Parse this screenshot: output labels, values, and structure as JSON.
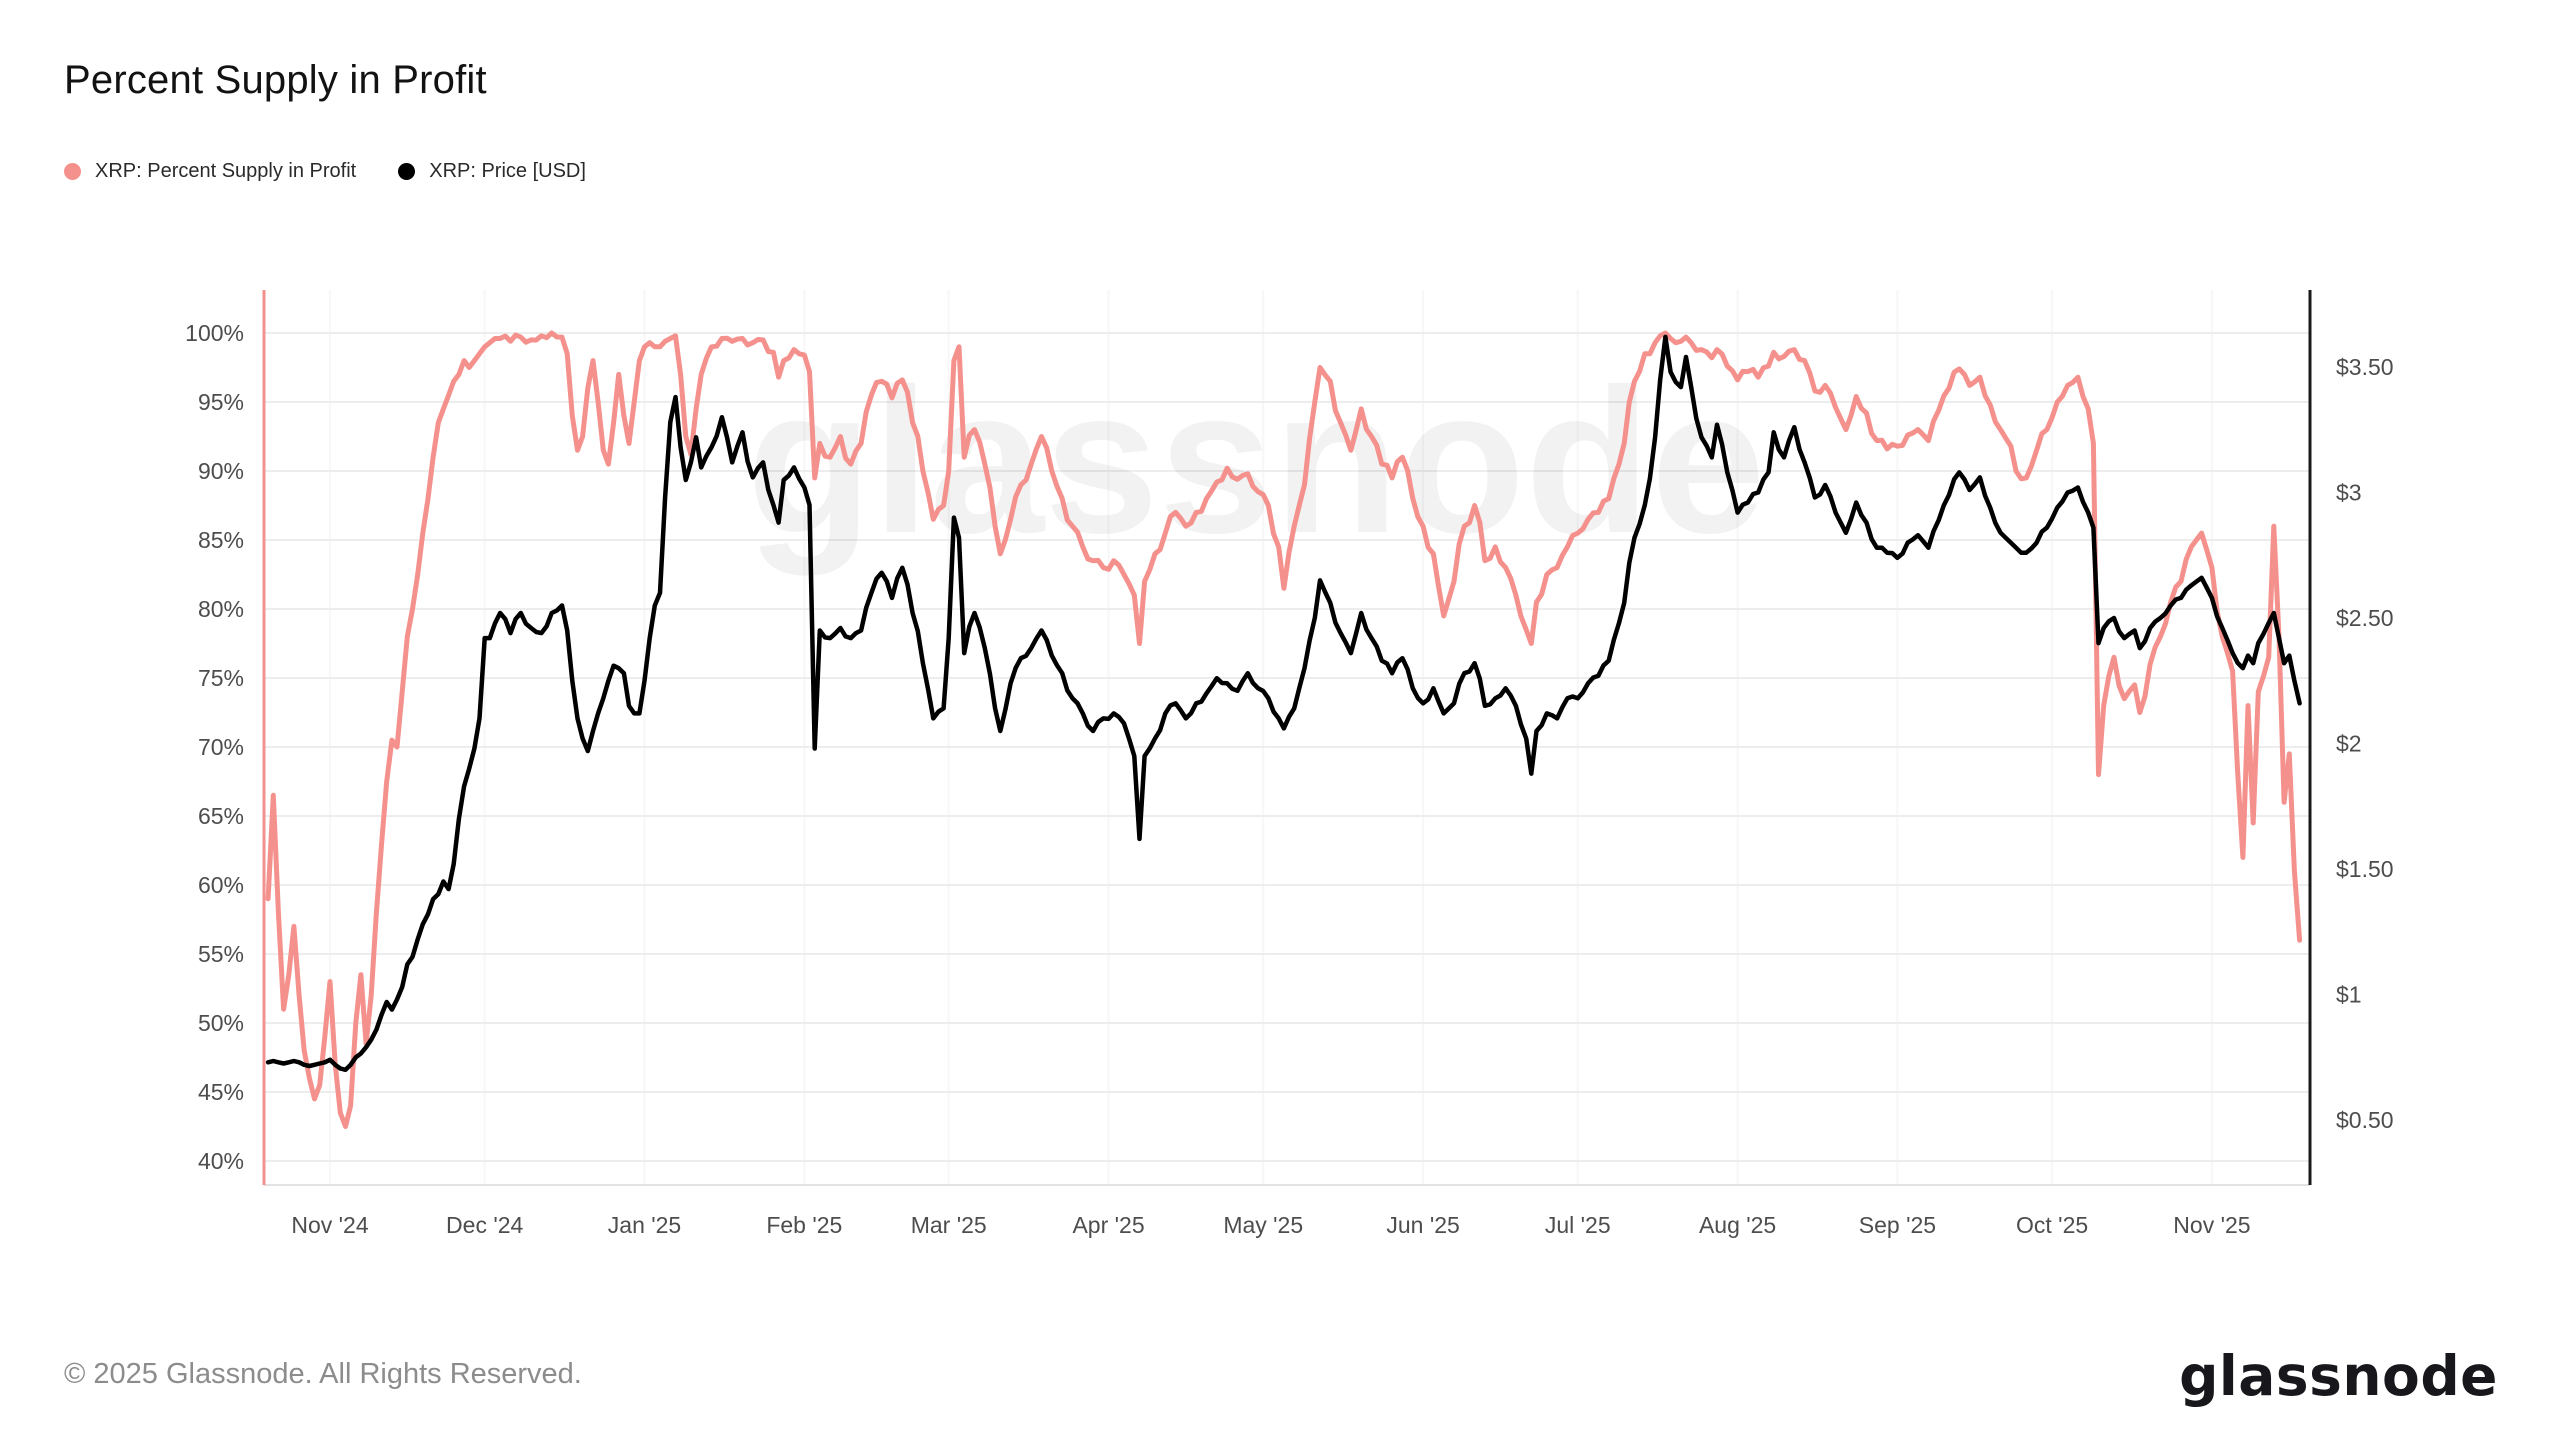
{
  "header": {
    "title": "Percent Supply in Profit"
  },
  "legend": {
    "items": [
      {
        "label": "XRP: Percent Supply in Profit",
        "color": "#f5918d"
      },
      {
        "label": "XRP: Price [USD]",
        "color": "#000000"
      }
    ]
  },
  "footer": {
    "copyright": "© 2025 Glassnode. All Rights Reserved.",
    "brand": "glassnode"
  },
  "chart_data": {
    "type": "line",
    "title": "Percent Supply in Profit",
    "watermark": "glassnode",
    "legend_position": "top-left",
    "grid": "horizontal",
    "x_axis": {
      "tick_dates": [
        "2024-11-01",
        "2024-12-01",
        "2025-01-01",
        "2025-02-01",
        "2025-03-01",
        "2025-04-01",
        "2025-05-01",
        "2025-06-01",
        "2025-07-01",
        "2025-08-01",
        "2025-09-01",
        "2025-10-01",
        "2025-11-01"
      ],
      "tick_labels": [
        "Nov '24",
        "Dec '24",
        "Jan '25",
        "Feb '25",
        "Mar '25",
        "Apr '25",
        "May '25",
        "Jun '25",
        "Jul '25",
        "Aug '25",
        "Sep '25",
        "Oct '25",
        "Nov '25"
      ]
    },
    "y_axis_left": {
      "unit": "%",
      "ticks": [
        100,
        95,
        90,
        85,
        80,
        75,
        70,
        65,
        60,
        55,
        50,
        45,
        40
      ],
      "tick_labels": [
        "100%",
        "95%",
        "90%",
        "85%",
        "80%",
        "75%",
        "70%",
        "65%",
        "60%",
        "55%",
        "50%",
        "45%",
        "40%"
      ],
      "ylim": [
        40,
        100
      ],
      "axis_color": "#f2918d"
    },
    "y_axis_right": {
      "unit": "USD",
      "ticks": [
        3.5,
        3,
        2.5,
        2,
        1.5,
        1,
        0.5
      ],
      "tick_labels": [
        "$3.50",
        "$3",
        "$2.50",
        "$2",
        "$1.50",
        "$1",
        "$0.50"
      ],
      "ylim": [
        0.5,
        3.5
      ],
      "axis_color": "#1a1a1a"
    },
    "dates": [
      "2024-10-20",
      "2024-10-21",
      "2024-10-22",
      "2024-10-23",
      "2024-10-24",
      "2024-10-25",
      "2024-10-26",
      "2024-10-27",
      "2024-10-28",
      "2024-10-29",
      "2024-10-30",
      "2024-10-31",
      "2024-11-01",
      "2024-11-02",
      "2024-11-03",
      "2024-11-04",
      "2024-11-05",
      "2024-11-06",
      "2024-11-07",
      "2024-11-08",
      "2024-11-09",
      "2024-11-10",
      "2024-11-11",
      "2024-11-12",
      "2024-11-13",
      "2024-11-14",
      "2024-11-15",
      "2024-11-16",
      "2024-11-17",
      "2024-11-18",
      "2024-11-19",
      "2024-11-20",
      "2024-11-21",
      "2024-11-22",
      "2024-11-23",
      "2024-11-24",
      "2024-11-25",
      "2024-11-26",
      "2024-11-27",
      "2024-11-28",
      "2024-11-29",
      "2024-11-30",
      "2024-12-01",
      "2024-12-02",
      "2024-12-04",
      "2024-12-06",
      "2024-12-08",
      "2024-12-10",
      "2024-12-12",
      "2024-12-14",
      "2024-12-16",
      "2024-12-17",
      "2024-12-18",
      "2024-12-19",
      "2024-12-20",
      "2024-12-21",
      "2024-12-22",
      "2024-12-23",
      "2024-12-24",
      "2024-12-25",
      "2024-12-26",
      "2024-12-27",
      "2024-12-28",
      "2024-12-29",
      "2024-12-30",
      "2024-12-31",
      "2025-01-01",
      "2025-01-02",
      "2025-01-03",
      "2025-01-04",
      "2025-01-05",
      "2025-01-06",
      "2025-01-07",
      "2025-01-08",
      "2025-01-09",
      "2025-01-10",
      "2025-01-11",
      "2025-01-12",
      "2025-01-14",
      "2025-01-16",
      "2025-01-18",
      "2025-01-20",
      "2025-01-22",
      "2025-01-24",
      "2025-01-26",
      "2025-01-27",
      "2025-01-28",
      "2025-01-30",
      "2025-02-01",
      "2025-02-02",
      "2025-02-03",
      "2025-02-04",
      "2025-02-06",
      "2025-02-08",
      "2025-02-10",
      "2025-02-12",
      "2025-02-14",
      "2025-02-16",
      "2025-02-18",
      "2025-02-20",
      "2025-02-22",
      "2025-02-24",
      "2025-02-26",
      "2025-02-28",
      "2025-03-01",
      "2025-03-02",
      "2025-03-03",
      "2025-03-04",
      "2025-03-06",
      "2025-03-08",
      "2025-03-10",
      "2025-03-11",
      "2025-03-13",
      "2025-03-15",
      "2025-03-17",
      "2025-03-19",
      "2025-03-21",
      "2025-03-23",
      "2025-03-25",
      "2025-03-27",
      "2025-03-29",
      "2025-03-31",
      "2025-04-02",
      "2025-04-04",
      "2025-04-06",
      "2025-04-07",
      "2025-04-08",
      "2025-04-10",
      "2025-04-12",
      "2025-04-14",
      "2025-04-16",
      "2025-04-18",
      "2025-04-20",
      "2025-04-22",
      "2025-04-24",
      "2025-04-26",
      "2025-04-28",
      "2025-04-30",
      "2025-05-02",
      "2025-05-04",
      "2025-05-05",
      "2025-05-07",
      "2025-05-09",
      "2025-05-11",
      "2025-05-12",
      "2025-05-14",
      "2025-05-16",
      "2025-05-18",
      "2025-05-20",
      "2025-05-22",
      "2025-05-24",
      "2025-05-26",
      "2025-05-28",
      "2025-05-30",
      "2025-06-01",
      "2025-06-03",
      "2025-06-05",
      "2025-06-07",
      "2025-06-09",
      "2025-06-11",
      "2025-06-13",
      "2025-06-15",
      "2025-06-17",
      "2025-06-19",
      "2025-06-21",
      "2025-06-22",
      "2025-06-23",
      "2025-06-25",
      "2025-06-27",
      "2025-06-29",
      "2025-07-01",
      "2025-07-03",
      "2025-07-05",
      "2025-07-07",
      "2025-07-09",
      "2025-07-10",
      "2025-07-11",
      "2025-07-12",
      "2025-07-14",
      "2025-07-16",
      "2025-07-17",
      "2025-07-18",
      "2025-07-19",
      "2025-07-21",
      "2025-07-22",
      "2025-07-23",
      "2025-07-25",
      "2025-07-27",
      "2025-07-28",
      "2025-07-30",
      "2025-08-01",
      "2025-08-03",
      "2025-08-05",
      "2025-08-07",
      "2025-08-08",
      "2025-08-10",
      "2025-08-12",
      "2025-08-14",
      "2025-08-16",
      "2025-08-18",
      "2025-08-20",
      "2025-08-22",
      "2025-08-24",
      "2025-08-26",
      "2025-08-28",
      "2025-08-30",
      "2025-09-01",
      "2025-09-03",
      "2025-09-05",
      "2025-09-07",
      "2025-09-09",
      "2025-09-11",
      "2025-09-13",
      "2025-09-15",
      "2025-09-17",
      "2025-09-19",
      "2025-09-21",
      "2025-09-23",
      "2025-09-24",
      "2025-09-26",
      "2025-09-28",
      "2025-09-30",
      "2025-10-02",
      "2025-10-04",
      "2025-10-06",
      "2025-10-08",
      "2025-10-09",
      "2025-10-10",
      "2025-10-11",
      "2025-10-13",
      "2025-10-15",
      "2025-10-17",
      "2025-10-18",
      "2025-10-20",
      "2025-10-22",
      "2025-10-24",
      "2025-10-26",
      "2025-10-28",
      "2025-10-30",
      "2025-11-01",
      "2025-11-03",
      "2025-11-05",
      "2025-11-07",
      "2025-11-08",
      "2025-11-09",
      "2025-11-10",
      "2025-11-12",
      "2025-11-13",
      "2025-11-14",
      "2025-11-15",
      "2025-11-16",
      "2025-11-17",
      "2025-11-18"
    ],
    "series": [
      {
        "name": "XRP: Percent Supply in Profit",
        "axis": "left",
        "unit": "%",
        "color": "#f5918d",
        "values": [
          59.0,
          66.5,
          58.0,
          51.0,
          53.5,
          57.0,
          52.0,
          48.0,
          46.0,
          44.5,
          45.5,
          49.0,
          53.0,
          47.0,
          43.5,
          42.5,
          44.0,
          50.0,
          53.5,
          48.5,
          52.0,
          58.0,
          63.0,
          67.5,
          70.5,
          70.0,
          74.0,
          78.0,
          80.0,
          82.5,
          85.5,
          88.0,
          91.0,
          93.5,
          94.5,
          95.5,
          96.5,
          97.0,
          98.0,
          97.5,
          98.0,
          98.5,
          99.0,
          99.3,
          99.6,
          99.4,
          99.7,
          99.5,
          99.8,
          100.0,
          99.7,
          98.5,
          94.0,
          91.5,
          92.5,
          96.0,
          98.0,
          95.0,
          91.5,
          90.5,
          93.5,
          97.0,
          94.0,
          92.0,
          95.0,
          98.0,
          99.0,
          99.3,
          99.0,
          99.0,
          99.4,
          99.6,
          99.8,
          97.0,
          92.5,
          91.2,
          94.5,
          97.0,
          99.0,
          99.6,
          99.4,
          99.6,
          99.3,
          99.5,
          98.6,
          96.8,
          98.0,
          98.8,
          98.4,
          97.2,
          89.5,
          92.0,
          91.0,
          92.5,
          90.5,
          92.0,
          95.5,
          96.5,
          95.3,
          96.6,
          93.5,
          90.0,
          86.5,
          87.5,
          90.0,
          98.0,
          99.0,
          91.0,
          93.0,
          90.5,
          86.0,
          84.0,
          86.5,
          89.0,
          90.5,
          92.5,
          90.0,
          88.0,
          86.0,
          84.5,
          83.5,
          83.0,
          83.5,
          82.5,
          81.0,
          77.5,
          82.0,
          84.0,
          85.5,
          87.0,
          86.0,
          87.0,
          88.0,
          89.2,
          90.2,
          89.4,
          89.8,
          88.5,
          87.5,
          84.5,
          81.5,
          86.0,
          89.0,
          95.0,
          97.5,
          96.5,
          93.5,
          91.5,
          94.5,
          92.5,
          90.5,
          89.5,
          91.0,
          88.0,
          86.0,
          84.0,
          79.5,
          82.0,
          86.0,
          87.5,
          83.5,
          84.5,
          83.0,
          81.0,
          78.5,
          77.5,
          80.5,
          82.5,
          83.0,
          84.5,
          85.5,
          86.5,
          87.0,
          88.0,
          90.5,
          92.0,
          95.0,
          96.5,
          98.5,
          99.3,
          99.8,
          100.0,
          99.6,
          99.4,
          99.7,
          99.3,
          98.8,
          98.2,
          98.8,
          97.6,
          96.6,
          97.2,
          96.8,
          97.6,
          98.6,
          98.3,
          98.8,
          98.0,
          95.8,
          96.2,
          94.6,
          93.0,
          95.4,
          94.2,
          92.2,
          91.6,
          91.8,
          92.6,
          93.0,
          92.2,
          94.4,
          96.0,
          97.4,
          96.2,
          96.8,
          94.8,
          93.0,
          91.8,
          90.0,
          89.5,
          91.5,
          93.0,
          95.0,
          96.2,
          96.8,
          94.5,
          92.0,
          68.0,
          73.0,
          76.5,
          73.5,
          74.5,
          72.5,
          76.0,
          78.0,
          80.5,
          82.0,
          84.5,
          85.5,
          83.0,
          78.0,
          75.5,
          62.0,
          73.0,
          64.5,
          74.0,
          76.5,
          86.0,
          78.0,
          66.0,
          69.5,
          61.0,
          56.0
        ]
      },
      {
        "name": "XRP: Price [USD]",
        "axis": "right",
        "unit": "USD",
        "color": "#000000",
        "values": [
          0.73,
          0.735,
          0.73,
          0.725,
          0.73,
          0.735,
          0.73,
          0.72,
          0.715,
          0.72,
          0.725,
          0.73,
          0.74,
          0.72,
          0.705,
          0.7,
          0.72,
          0.75,
          0.765,
          0.79,
          0.82,
          0.86,
          0.92,
          0.97,
          0.94,
          0.98,
          1.03,
          1.12,
          1.15,
          1.22,
          1.28,
          1.32,
          1.38,
          1.4,
          1.45,
          1.42,
          1.52,
          1.7,
          1.83,
          1.9,
          1.98,
          2.1,
          2.42,
          2.42,
          2.52,
          2.44,
          2.52,
          2.46,
          2.44,
          2.52,
          2.55,
          2.45,
          2.25,
          2.1,
          2.02,
          1.97,
          2.05,
          2.12,
          2.18,
          2.25,
          2.31,
          2.3,
          2.28,
          2.15,
          2.12,
          2.12,
          2.25,
          2.42,
          2.55,
          2.6,
          2.98,
          3.28,
          3.38,
          3.18,
          3.05,
          3.12,
          3.22,
          3.1,
          3.18,
          3.3,
          3.12,
          3.24,
          3.06,
          3.12,
          2.95,
          2.88,
          3.05,
          3.1,
          3.02,
          2.95,
          1.98,
          2.45,
          2.42,
          2.46,
          2.42,
          2.45,
          2.6,
          2.68,
          2.58,
          2.7,
          2.52,
          2.32,
          2.1,
          2.14,
          2.42,
          2.9,
          2.82,
          2.36,
          2.52,
          2.38,
          2.14,
          2.05,
          2.24,
          2.34,
          2.38,
          2.45,
          2.35,
          2.28,
          2.18,
          2.12,
          2.05,
          2.1,
          2.12,
          2.08,
          1.95,
          1.62,
          1.95,
          2.02,
          2.12,
          2.16,
          2.1,
          2.16,
          2.2,
          2.26,
          2.24,
          2.21,
          2.28,
          2.22,
          2.18,
          2.1,
          2.06,
          2.14,
          2.3,
          2.5,
          2.65,
          2.56,
          2.44,
          2.36,
          2.52,
          2.42,
          2.33,
          2.28,
          2.34,
          2.22,
          2.16,
          2.22,
          2.12,
          2.16,
          2.28,
          2.32,
          2.15,
          2.18,
          2.22,
          2.15,
          2.02,
          1.88,
          2.05,
          2.12,
          2.1,
          2.18,
          2.18,
          2.24,
          2.27,
          2.33,
          2.48,
          2.56,
          2.72,
          2.82,
          2.95,
          3.22,
          3.45,
          3.62,
          3.48,
          3.42,
          3.54,
          3.42,
          3.22,
          3.14,
          3.27,
          3.08,
          2.92,
          2.96,
          3.0,
          3.08,
          3.24,
          3.14,
          3.26,
          3.12,
          2.98,
          3.03,
          2.92,
          2.84,
          2.96,
          2.88,
          2.78,
          2.76,
          2.74,
          2.8,
          2.83,
          2.78,
          2.89,
          2.99,
          3.08,
          3.01,
          3.06,
          2.94,
          2.84,
          2.8,
          2.78,
          2.76,
          2.8,
          2.86,
          2.94,
          3.0,
          3.02,
          2.92,
          2.86,
          2.4,
          2.46,
          2.5,
          2.42,
          2.45,
          2.38,
          2.46,
          2.5,
          2.55,
          2.58,
          2.63,
          2.66,
          2.58,
          2.46,
          2.36,
          2.3,
          2.35,
          2.32,
          2.4,
          2.48,
          2.52,
          2.42,
          2.32,
          2.35,
          2.25,
          2.16
        ]
      }
    ]
  }
}
